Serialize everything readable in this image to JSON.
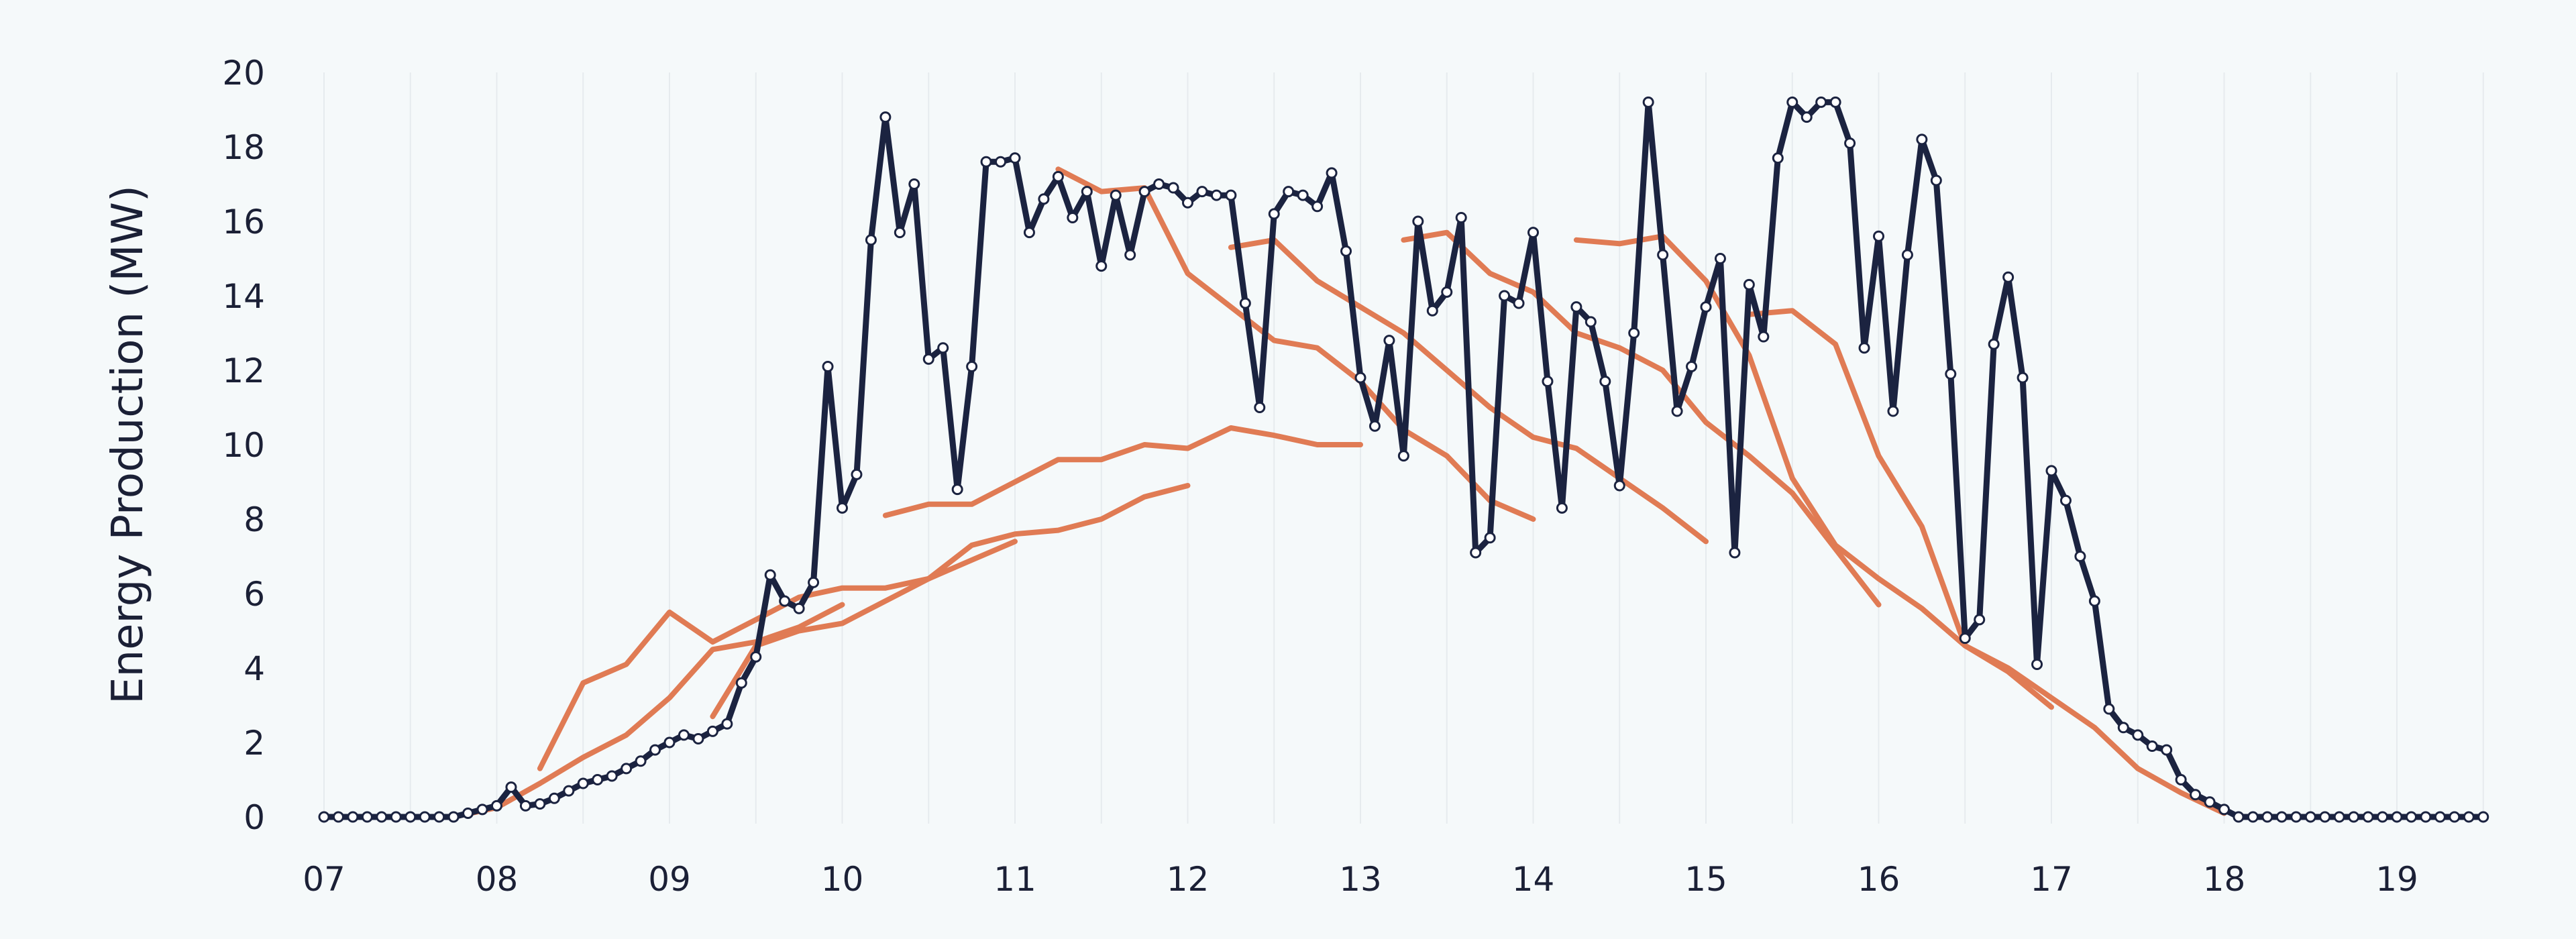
{
  "chart_data": {
    "type": "line",
    "title": "",
    "xlabel": "",
    "ylabel": "Energy Production (MW)",
    "xlim": [
      "07:00",
      "19:30"
    ],
    "ylim": [
      0,
      20
    ],
    "grid": "vertical every 30 minutes",
    "legend": "none",
    "x_ticks": [
      "07",
      "08",
      "09",
      "10",
      "11",
      "12",
      "13",
      "14",
      "15",
      "16",
      "17",
      "18",
      "19"
    ],
    "y_ticks": [
      "0",
      "2",
      "4",
      "6",
      "8",
      "10",
      "12",
      "14",
      "16",
      "18",
      "20"
    ],
    "colors": {
      "actual": "#1b2340",
      "forecast": "#e07b54",
      "background": "#f5f9fa"
    },
    "series": [
      {
        "kind": "actual",
        "start": "07:00",
        "interval_minutes": 5,
        "markers": true,
        "values": [
          0,
          0,
          0,
          0,
          0,
          0,
          0,
          0,
          0,
          0,
          0.1,
          0.2,
          0.3,
          0.8,
          0.3,
          0.35,
          0.5,
          0.7,
          0.9,
          1.0,
          1.1,
          1.3,
          1.5,
          1.8,
          2.0,
          2.2,
          2.1,
          2.3,
          2.5,
          3.6,
          4.3,
          6.5,
          5.8,
          5.6,
          6.3,
          12.1,
          8.3,
          9.2,
          15.5,
          18.8,
          15.7,
          17.0,
          12.3,
          12.6,
          8.8,
          12.1,
          17.6,
          17.6,
          17.7,
          15.7,
          16.6,
          17.2,
          16.1,
          16.8,
          14.8,
          16.7,
          15.1,
          16.8,
          17.0,
          16.9,
          16.5,
          16.8,
          16.7,
          16.7,
          13.8,
          11.0,
          16.2,
          16.8,
          16.7,
          16.4,
          17.3,
          15.2,
          11.8,
          10.5,
          12.8,
          9.7,
          16.0,
          13.6,
          14.1,
          16.1,
          7.1,
          7.5,
          14.0,
          13.8,
          15.7,
          11.7,
          8.3,
          13.7,
          13.3,
          11.7,
          8.9,
          13.0,
          19.2,
          15.1,
          10.9,
          12.1,
          13.7,
          15.0,
          7.1,
          14.3,
          12.9,
          17.7,
          19.2,
          18.8,
          19.2,
          19.2,
          18.1,
          12.6,
          15.6,
          10.9,
          15.1,
          18.2,
          17.1,
          11.9,
          4.8,
          5.3,
          12.7,
          14.5,
          11.8,
          4.1,
          9.3,
          8.5,
          7.0,
          5.8,
          2.9,
          2.4,
          2.2,
          1.9,
          1.8,
          1.0,
          0.6,
          0.4,
          0.2,
          0,
          0,
          0,
          0,
          0,
          0,
          0,
          0,
          0,
          0,
          0,
          0,
          0,
          0,
          0,
          0,
          0,
          0
        ]
      },
      {
        "kind": "forecast",
        "start": "07:15",
        "interval_minutes": 15,
        "values": [
          0,
          0,
          0,
          0.25,
          0.9,
          1.6,
          2.2,
          3.2,
          4.5,
          4.7,
          5.1,
          5.7
        ]
      },
      {
        "kind": "forecast",
        "start": "08:15",
        "interval_minutes": 15,
        "values": [
          1.3,
          3.6,
          4.1,
          5.5,
          4.7,
          5.3,
          5.9,
          6.15,
          6.15,
          6.4,
          6.9,
          7.4
        ]
      },
      {
        "kind": "forecast",
        "start": "09:15",
        "interval_minutes": 15,
        "values": [
          2.7,
          4.6,
          5.0,
          5.2,
          5.8,
          6.4,
          7.3,
          7.6,
          7.7,
          8.0,
          8.6,
          8.9
        ]
      },
      {
        "kind": "forecast",
        "start": "10:15",
        "interval_minutes": 15,
        "values": [
          8.1,
          8.4,
          8.4,
          9.0,
          9.6,
          9.6,
          10.0,
          9.9,
          10.45,
          10.25,
          10.0,
          10.0
        ]
      },
      {
        "kind": "forecast",
        "start": "11:15",
        "interval_minutes": 15,
        "values": [
          17.4,
          16.8,
          16.9,
          14.6,
          13.7,
          12.8,
          12.6,
          11.7,
          10.4,
          9.7,
          8.5,
          8.0
        ]
      },
      {
        "kind": "forecast",
        "start": "12:15",
        "interval_minutes": 15,
        "values": [
          15.3,
          15.5,
          14.4,
          13.7,
          13.0,
          12.0,
          11.0,
          10.2,
          9.9,
          9.1,
          8.3,
          7.4
        ]
      },
      {
        "kind": "forecast",
        "start": "13:15",
        "interval_minutes": 15,
        "values": [
          15.5,
          15.7,
          14.6,
          14.1,
          13.0,
          12.6,
          12.0,
          10.6,
          9.7,
          8.7,
          7.2,
          5.7
        ]
      },
      {
        "kind": "forecast",
        "start": "14:15",
        "interval_minutes": 15,
        "values": [
          15.5,
          15.4,
          15.6,
          14.4,
          12.4,
          9.1,
          7.3,
          6.4,
          5.6,
          4.6,
          3.9,
          2.95
        ]
      },
      {
        "kind": "forecast",
        "start": "15:15",
        "interval_minutes": 15,
        "values": [
          13.5,
          13.6,
          12.7,
          9.7,
          7.8,
          4.6,
          4.0,
          3.2,
          2.4,
          1.3,
          0.65,
          0.1
        ]
      }
    ]
  }
}
